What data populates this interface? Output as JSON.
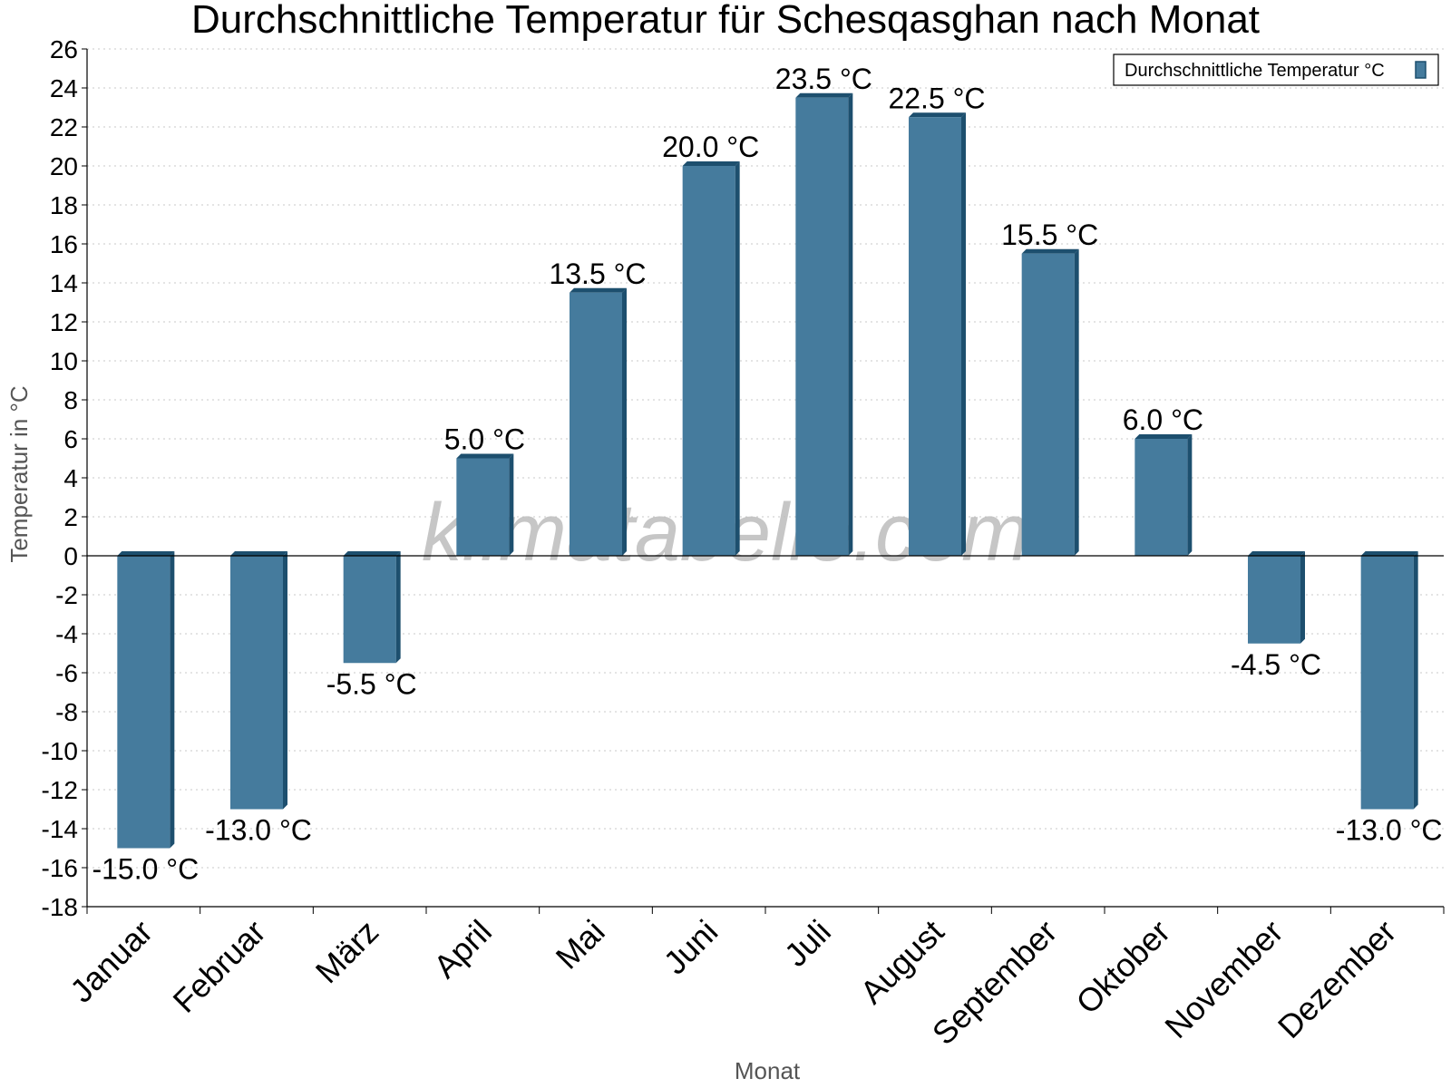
{
  "chart_data": {
    "type": "bar",
    "title": "Durchschnittliche Temperatur für Schesqasghan nach Monat",
    "xlabel": "Monat",
    "ylabel": "Temperatur in °C",
    "categories": [
      "Januar",
      "Februar",
      "März",
      "April",
      "Mai",
      "Juni",
      "Juli",
      "August",
      "September",
      "Oktober",
      "November",
      "Dezember"
    ],
    "series": [
      {
        "name": "Durchschnittliche Temperatur °C",
        "values": [
          -15.0,
          -13.0,
          -5.5,
          5.0,
          13.5,
          20.0,
          23.5,
          22.5,
          15.5,
          6.0,
          -4.5,
          -13.0
        ],
        "labels": [
          "-15.0 °C",
          "-13.0 °C",
          "-5.5 °C",
          "5.0 °C",
          "13.5 °C",
          "20.0 °C",
          "23.5 °C",
          "22.5 °C",
          "15.5 °C",
          "6.0 °C",
          "-4.5 °C",
          "-13.0 °C"
        ]
      }
    ],
    "ylim": [
      -18,
      26
    ],
    "ytick_step": 2,
    "grid": true,
    "legend_position": "top-right",
    "colors": {
      "bar": "#457b9d",
      "bar_side": "#1d4f6e",
      "grid": "#c8c8c8"
    },
    "watermark": "klimatabelle.com"
  }
}
